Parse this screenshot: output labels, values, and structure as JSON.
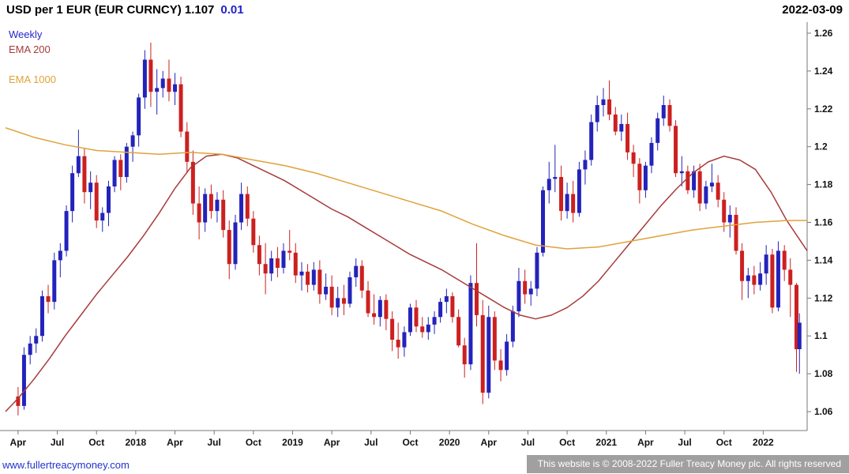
{
  "header": {
    "title": "USD per 1 EUR (EUR CURNCY) 1.107",
    "change": "0.01",
    "date": "2022-03-09"
  },
  "legend": {
    "items": [
      {
        "label": "Weekly",
        "color": "#2626cc"
      },
      {
        "label": "EMA 200",
        "color": "#a83a3a"
      },
      {
        "label": "EMA 1000",
        "color": "#e0a23a"
      }
    ]
  },
  "footer": {
    "link": "www.fullertreacymoney.com",
    "copyright": "This website is © 2008-2022 Fuller Treacy Money plc. All rights reserved"
  },
  "colors": {
    "up": "#2323bb",
    "down": "#cc2020",
    "ema200": "#a83a3a",
    "ema1000": "#e0a23a",
    "change": "#2222cc",
    "link": "#2233cc",
    "axis": "#777777"
  },
  "chart_data": {
    "type": "candlestick",
    "title": "USD per 1 EUR (EUR CURNCY)",
    "timeframe": "Weekly",
    "last_price": 1.107,
    "change": 0.01,
    "as_of_date": "2022-03-09",
    "grid": false,
    "legend_position": "top-left",
    "x_domain": [
      2017.17,
      2022.28
    ],
    "y_domain": [
      1.05,
      1.265
    ],
    "y_ticks": [
      1.26,
      1.24,
      1.22,
      1.2,
      1.18,
      1.16,
      1.14,
      1.12,
      1.1,
      1.08,
      1.06
    ],
    "x_ticks": [
      {
        "label": "Apr",
        "t": 2017.25
      },
      {
        "label": "Jul",
        "t": 2017.5
      },
      {
        "label": "Oct",
        "t": 2017.75
      },
      {
        "label": "2018",
        "t": 2018.0
      },
      {
        "label": "Apr",
        "t": 2018.25
      },
      {
        "label": "Jul",
        "t": 2018.5
      },
      {
        "label": "Oct",
        "t": 2018.75
      },
      {
        "label": "2019",
        "t": 2019.0
      },
      {
        "label": "Apr",
        "t": 2019.25
      },
      {
        "label": "Jul",
        "t": 2019.5
      },
      {
        "label": "Oct",
        "t": 2019.75
      },
      {
        "label": "2020",
        "t": 2020.0
      },
      {
        "label": "Apr",
        "t": 2020.25
      },
      {
        "label": "Jul",
        "t": 2020.5
      },
      {
        "label": "Oct",
        "t": 2020.75
      },
      {
        "label": "2021",
        "t": 2021.0
      },
      {
        "label": "Apr",
        "t": 2021.25
      },
      {
        "label": "Jul",
        "t": 2021.5
      },
      {
        "label": "Oct",
        "t": 2021.75
      },
      {
        "label": "2022",
        "t": 2022.0
      }
    ],
    "candles": [
      [
        2017.25,
        1.068,
        1.073,
        1.058,
        1.063
      ],
      [
        2017.288,
        1.063,
        1.094,
        1.061,
        1.09
      ],
      [
        2017.327,
        1.09,
        1.1,
        1.085,
        1.096
      ],
      [
        2017.365,
        1.096,
        1.104,
        1.091,
        1.1
      ],
      [
        2017.404,
        1.1,
        1.124,
        1.097,
        1.121
      ],
      [
        2017.442,
        1.121,
        1.127,
        1.112,
        1.118
      ],
      [
        2017.481,
        1.118,
        1.144,
        1.114,
        1.14
      ],
      [
        2017.519,
        1.14,
        1.149,
        1.131,
        1.145
      ],
      [
        2017.558,
        1.145,
        1.169,
        1.142,
        1.166
      ],
      [
        2017.596,
        1.166,
        1.19,
        1.16,
        1.186
      ],
      [
        2017.635,
        1.186,
        1.209,
        1.184,
        1.195
      ],
      [
        2017.673,
        1.195,
        1.199,
        1.17,
        1.176
      ],
      [
        2017.712,
        1.176,
        1.187,
        1.167,
        1.181
      ],
      [
        2017.75,
        1.181,
        1.185,
        1.157,
        1.161
      ],
      [
        2017.788,
        1.161,
        1.168,
        1.155,
        1.165
      ],
      [
        2017.827,
        1.165,
        1.182,
        1.158,
        1.179
      ],
      [
        2017.865,
        1.179,
        1.195,
        1.176,
        1.193
      ],
      [
        2017.904,
        1.193,
        1.196,
        1.177,
        1.184
      ],
      [
        2017.942,
        1.184,
        1.202,
        1.181,
        1.2
      ],
      [
        2017.981,
        1.2,
        1.208,
        1.192,
        1.206
      ],
      [
        2018.019,
        1.206,
        1.228,
        1.2,
        1.226
      ],
      [
        2018.058,
        1.226,
        1.251,
        1.22,
        1.246
      ],
      [
        2018.096,
        1.246,
        1.255,
        1.221,
        1.229
      ],
      [
        2018.135,
        1.229,
        1.241,
        1.217,
        1.231
      ],
      [
        2018.173,
        1.231,
        1.24,
        1.226,
        1.236
      ],
      [
        2018.212,
        1.236,
        1.246,
        1.224,
        1.229
      ],
      [
        2018.25,
        1.229,
        1.239,
        1.222,
        1.233
      ],
      [
        2018.288,
        1.233,
        1.237,
        1.205,
        1.208
      ],
      [
        2018.327,
        1.208,
        1.213,
        1.186,
        1.192
      ],
      [
        2018.365,
        1.192,
        1.198,
        1.164,
        1.17
      ],
      [
        2018.404,
        1.17,
        1.179,
        1.151,
        1.16
      ],
      [
        2018.442,
        1.16,
        1.178,
        1.155,
        1.175
      ],
      [
        2018.481,
        1.175,
        1.18,
        1.162,
        1.166
      ],
      [
        2018.519,
        1.166,
        1.176,
        1.16,
        1.172
      ],
      [
        2018.558,
        1.172,
        1.177,
        1.152,
        1.156
      ],
      [
        2018.596,
        1.156,
        1.161,
        1.13,
        1.138
      ],
      [
        2018.635,
        1.138,
        1.164,
        1.135,
        1.16
      ],
      [
        2018.673,
        1.16,
        1.181,
        1.156,
        1.175
      ],
      [
        2018.712,
        1.175,
        1.179,
        1.158,
        1.162
      ],
      [
        2018.75,
        1.162,
        1.166,
        1.144,
        1.148
      ],
      [
        2018.788,
        1.148,
        1.153,
        1.132,
        1.138
      ],
      [
        2018.827,
        1.138,
        1.149,
        1.122,
        1.133
      ],
      [
        2018.865,
        1.133,
        1.145,
        1.129,
        1.141
      ],
      [
        2018.904,
        1.141,
        1.147,
        1.131,
        1.136
      ],
      [
        2018.942,
        1.136,
        1.149,
        1.133,
        1.145
      ],
      [
        2018.981,
        1.145,
        1.156,
        1.14,
        1.144
      ],
      [
        2019.019,
        1.144,
        1.149,
        1.128,
        1.132
      ],
      [
        2019.058,
        1.132,
        1.139,
        1.124,
        1.134
      ],
      [
        2019.096,
        1.134,
        1.138,
        1.123,
        1.127
      ],
      [
        2019.135,
        1.127,
        1.139,
        1.124,
        1.135
      ],
      [
        2019.173,
        1.135,
        1.14,
        1.117,
        1.122
      ],
      [
        2019.212,
        1.122,
        1.133,
        1.119,
        1.126
      ],
      [
        2019.25,
        1.126,
        1.132,
        1.111,
        1.115
      ],
      [
        2019.288,
        1.115,
        1.126,
        1.11,
        1.12
      ],
      [
        2019.327,
        1.12,
        1.127,
        1.111,
        1.117
      ],
      [
        2019.365,
        1.117,
        1.134,
        1.115,
        1.131
      ],
      [
        2019.404,
        1.131,
        1.141,
        1.126,
        1.137
      ],
      [
        2019.442,
        1.137,
        1.14,
        1.12,
        1.124
      ],
      [
        2019.481,
        1.124,
        1.129,
        1.11,
        1.112
      ],
      [
        2019.519,
        1.112,
        1.122,
        1.106,
        1.11
      ],
      [
        2019.558,
        1.11,
        1.121,
        1.105,
        1.119
      ],
      [
        2019.596,
        1.119,
        1.122,
        1.103,
        1.109
      ],
      [
        2019.635,
        1.109,
        1.113,
        1.092,
        1.098
      ],
      [
        2019.673,
        1.098,
        1.107,
        1.088,
        1.094
      ],
      [
        2019.712,
        1.094,
        1.105,
        1.089,
        1.102
      ],
      [
        2019.75,
        1.102,
        1.117,
        1.1,
        1.115
      ],
      [
        2019.788,
        1.115,
        1.119,
        1.102,
        1.105
      ],
      [
        2019.827,
        1.105,
        1.11,
        1.099,
        1.102
      ],
      [
        2019.865,
        1.102,
        1.11,
        1.098,
        1.106
      ],
      [
        2019.904,
        1.106,
        1.113,
        1.101,
        1.11
      ],
      [
        2019.942,
        1.11,
        1.12,
        1.107,
        1.118
      ],
      [
        2019.981,
        1.118,
        1.125,
        1.112,
        1.121
      ],
      [
        2020.019,
        1.121,
        1.123,
        1.107,
        1.11
      ],
      [
        2020.058,
        1.11,
        1.114,
        1.094,
        1.095
      ],
      [
        2020.096,
        1.095,
        1.099,
        1.078,
        1.085
      ],
      [
        2020.135,
        1.085,
        1.132,
        1.082,
        1.128
      ],
      [
        2020.173,
        1.128,
        1.149,
        1.105,
        1.111
      ],
      [
        2020.212,
        1.111,
        1.119,
        1.064,
        1.07
      ],
      [
        2020.25,
        1.07,
        1.116,
        1.067,
        1.11
      ],
      [
        2020.288,
        1.11,
        1.113,
        1.082,
        1.087
      ],
      [
        2020.327,
        1.087,
        1.093,
        1.076,
        1.082
      ],
      [
        2020.365,
        1.082,
        1.101,
        1.079,
        1.097
      ],
      [
        2020.404,
        1.097,
        1.116,
        1.094,
        1.113
      ],
      [
        2020.442,
        1.113,
        1.136,
        1.11,
        1.129
      ],
      [
        2020.481,
        1.129,
        1.135,
        1.117,
        1.122
      ],
      [
        2020.519,
        1.122,
        1.129,
        1.116,
        1.125
      ],
      [
        2020.558,
        1.125,
        1.147,
        1.121,
        1.144
      ],
      [
        2020.596,
        1.144,
        1.179,
        1.142,
        1.177
      ],
      [
        2020.635,
        1.177,
        1.192,
        1.17,
        1.183
      ],
      [
        2020.673,
        1.183,
        1.201,
        1.176,
        1.184
      ],
      [
        2020.712,
        1.184,
        1.19,
        1.161,
        1.166
      ],
      [
        2020.75,
        1.166,
        1.181,
        1.162,
        1.175
      ],
      [
        2020.788,
        1.175,
        1.182,
        1.16,
        1.165
      ],
      [
        2020.827,
        1.165,
        1.192,
        1.163,
        1.188
      ],
      [
        2020.865,
        1.188,
        1.198,
        1.18,
        1.193
      ],
      [
        2020.904,
        1.193,
        1.217,
        1.19,
        1.213
      ],
      [
        2020.942,
        1.213,
        1.227,
        1.208,
        1.222
      ],
      [
        2020.981,
        1.222,
        1.231,
        1.216,
        1.225
      ],
      [
        2021.019,
        1.225,
        1.235,
        1.214,
        1.217
      ],
      [
        2021.058,
        1.217,
        1.221,
        1.206,
        1.208
      ],
      [
        2021.096,
        1.208,
        1.217,
        1.203,
        1.212
      ],
      [
        2021.135,
        1.212,
        1.218,
        1.193,
        1.197
      ],
      [
        2021.173,
        1.197,
        1.201,
        1.184,
        1.191
      ],
      [
        2021.212,
        1.191,
        1.194,
        1.17,
        1.177
      ],
      [
        2021.25,
        1.177,
        1.192,
        1.173,
        1.19
      ],
      [
        2021.288,
        1.19,
        1.205,
        1.186,
        1.202
      ],
      [
        2021.327,
        1.202,
        1.218,
        1.198,
        1.215
      ],
      [
        2021.365,
        1.215,
        1.227,
        1.211,
        1.222
      ],
      [
        2021.404,
        1.222,
        1.225,
        1.208,
        1.211
      ],
      [
        2021.442,
        1.211,
        1.214,
        1.184,
        1.186
      ],
      [
        2021.481,
        1.186,
        1.195,
        1.179,
        1.187
      ],
      [
        2021.519,
        1.187,
        1.19,
        1.175,
        1.177
      ],
      [
        2021.558,
        1.177,
        1.19,
        1.173,
        1.187
      ],
      [
        2021.596,
        1.187,
        1.191,
        1.166,
        1.17
      ],
      [
        2021.635,
        1.17,
        1.182,
        1.167,
        1.179
      ],
      [
        2021.673,
        1.179,
        1.191,
        1.176,
        1.181
      ],
      [
        2021.712,
        1.181,
        1.185,
        1.168,
        1.172
      ],
      [
        2021.75,
        1.172,
        1.176,
        1.155,
        1.16
      ],
      [
        2021.788,
        1.16,
        1.169,
        1.152,
        1.164
      ],
      [
        2021.827,
        1.164,
        1.168,
        1.143,
        1.145
      ],
      [
        2021.865,
        1.145,
        1.149,
        1.119,
        1.129
      ],
      [
        2021.904,
        1.129,
        1.136,
        1.12,
        1.132
      ],
      [
        2021.942,
        1.132,
        1.137,
        1.122,
        1.127
      ],
      [
        2021.981,
        1.127,
        1.139,
        1.124,
        1.133
      ],
      [
        2022.019,
        1.133,
        1.148,
        1.127,
        1.143
      ],
      [
        2022.058,
        1.143,
        1.146,
        1.112,
        1.115
      ],
      [
        2022.096,
        1.115,
        1.15,
        1.113,
        1.145
      ],
      [
        2022.135,
        1.145,
        1.148,
        1.129,
        1.135
      ],
      [
        2022.173,
        1.135,
        1.141,
        1.11,
        1.127
      ],
      [
        2022.212,
        1.127,
        1.128,
        1.081,
        1.093
      ],
      [
        2022.231,
        1.093,
        1.112,
        1.08,
        1.107
      ]
    ],
    "ema200": [
      [
        2017.17,
        1.06
      ],
      [
        2017.25,
        1.067
      ],
      [
        2017.35,
        1.077
      ],
      [
        2017.45,
        1.088
      ],
      [
        2017.55,
        1.1
      ],
      [
        2017.65,
        1.111
      ],
      [
        2017.75,
        1.122
      ],
      [
        2017.85,
        1.132
      ],
      [
        2017.95,
        1.142
      ],
      [
        2018.05,
        1.153
      ],
      [
        2018.15,
        1.165
      ],
      [
        2018.25,
        1.178
      ],
      [
        2018.35,
        1.189
      ],
      [
        2018.45,
        1.195
      ],
      [
        2018.55,
        1.196
      ],
      [
        2018.65,
        1.194
      ],
      [
        2018.75,
        1.19
      ],
      [
        2018.85,
        1.186
      ],
      [
        2018.95,
        1.182
      ],
      [
        2019.05,
        1.177
      ],
      [
        2019.15,
        1.172
      ],
      [
        2019.25,
        1.167
      ],
      [
        2019.35,
        1.163
      ],
      [
        2019.45,
        1.158
      ],
      [
        2019.55,
        1.153
      ],
      [
        2019.65,
        1.148
      ],
      [
        2019.75,
        1.143
      ],
      [
        2019.85,
        1.139
      ],
      [
        2019.95,
        1.135
      ],
      [
        2020.05,
        1.13
      ],
      [
        2020.15,
        1.125
      ],
      [
        2020.25,
        1.12
      ],
      [
        2020.35,
        1.115
      ],
      [
        2020.45,
        1.111
      ],
      [
        2020.55,
        1.109
      ],
      [
        2020.65,
        1.111
      ],
      [
        2020.75,
        1.115
      ],
      [
        2020.85,
        1.121
      ],
      [
        2020.95,
        1.129
      ],
      [
        2021.05,
        1.139
      ],
      [
        2021.15,
        1.149
      ],
      [
        2021.25,
        1.159
      ],
      [
        2021.35,
        1.169
      ],
      [
        2021.45,
        1.178
      ],
      [
        2021.55,
        1.186
      ],
      [
        2021.65,
        1.192
      ],
      [
        2021.75,
        1.195
      ],
      [
        2021.85,
        1.193
      ],
      [
        2021.95,
        1.188
      ],
      [
        2022.05,
        1.176
      ],
      [
        2022.15,
        1.161
      ],
      [
        2022.28,
        1.145
      ]
    ],
    "ema1000": [
      [
        2017.17,
        1.21
      ],
      [
        2017.35,
        1.205
      ],
      [
        2017.55,
        1.201
      ],
      [
        2017.75,
        1.198
      ],
      [
        2017.95,
        1.197
      ],
      [
        2018.15,
        1.196
      ],
      [
        2018.35,
        1.197
      ],
      [
        2018.55,
        1.196
      ],
      [
        2018.75,
        1.193
      ],
      [
        2018.95,
        1.19
      ],
      [
        2019.15,
        1.186
      ],
      [
        2019.35,
        1.181
      ],
      [
        2019.55,
        1.176
      ],
      [
        2019.75,
        1.171
      ],
      [
        2019.95,
        1.166
      ],
      [
        2020.15,
        1.159
      ],
      [
        2020.35,
        1.153
      ],
      [
        2020.55,
        1.148
      ],
      [
        2020.75,
        1.146
      ],
      [
        2020.95,
        1.147
      ],
      [
        2021.15,
        1.15
      ],
      [
        2021.35,
        1.153
      ],
      [
        2021.55,
        1.156
      ],
      [
        2021.75,
        1.158
      ],
      [
        2021.95,
        1.16
      ],
      [
        2022.15,
        1.161
      ],
      [
        2022.28,
        1.161
      ]
    ]
  }
}
